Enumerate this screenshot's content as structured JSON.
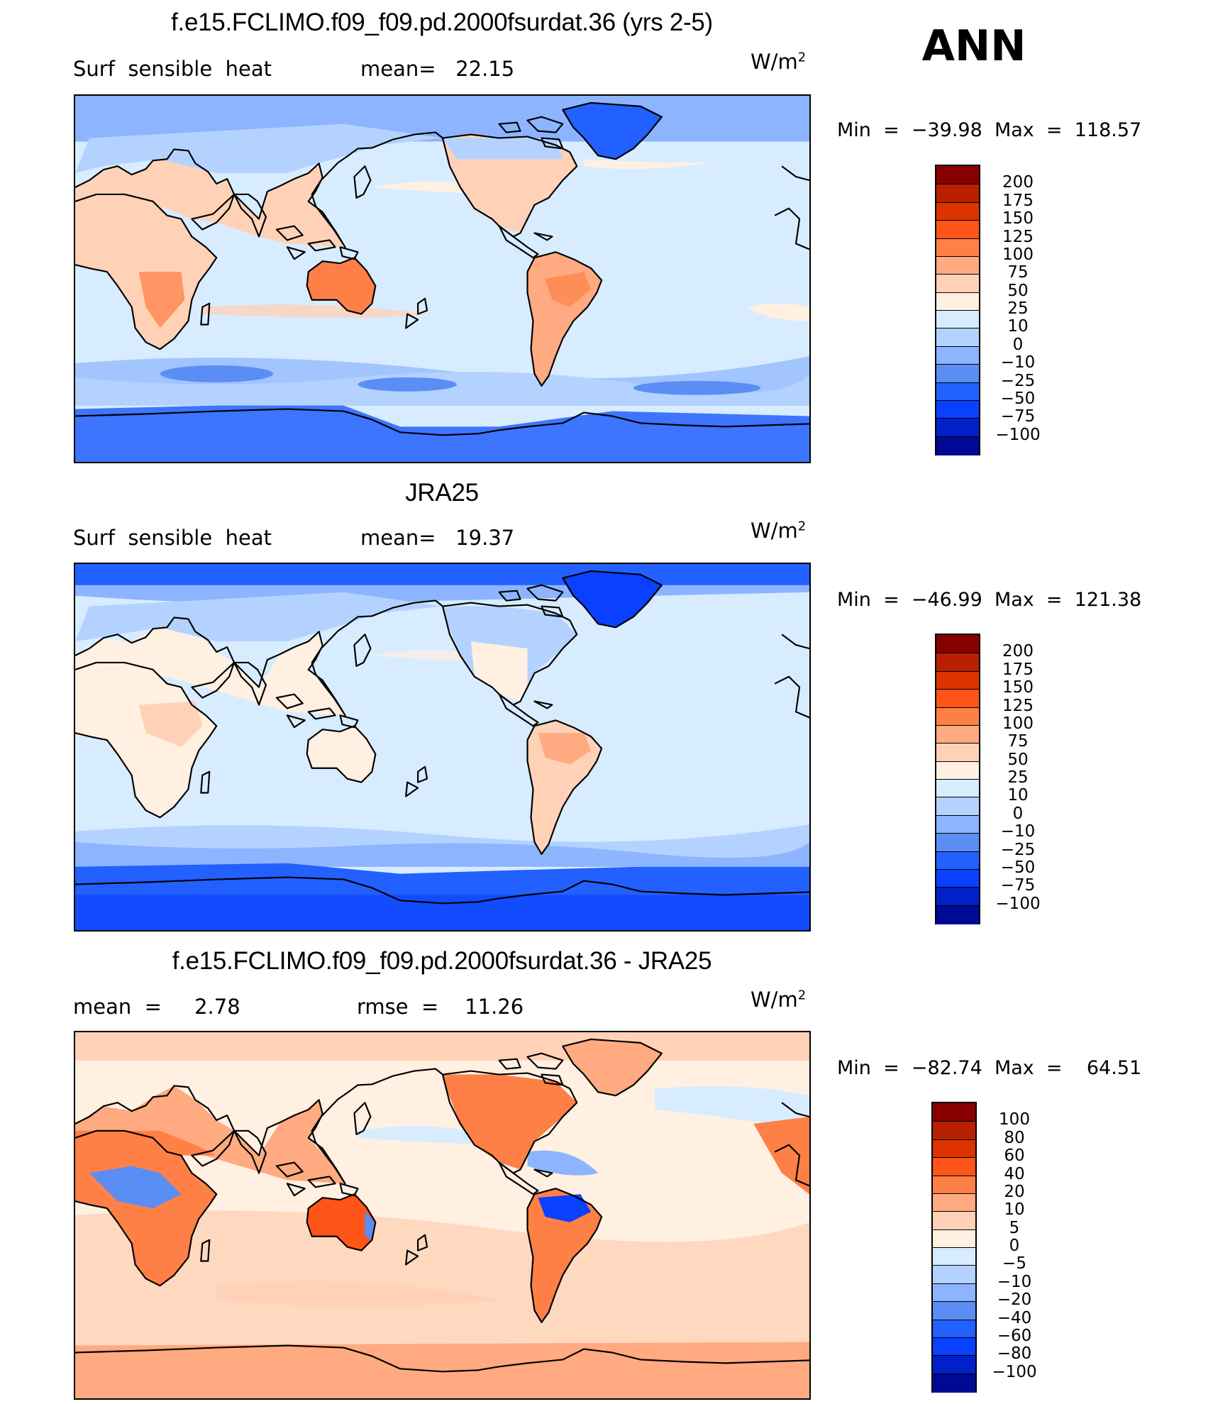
{
  "season": "ANN",
  "panels": [
    {
      "title": "f.e15.FCLIMO.f09_f09.pd.2000fsurdat.36 (yrs 2-5)",
      "left_text": "Surf  sensible  heat",
      "stat_text": "mean=   22.15",
      "units": "W/m",
      "units_sup": "2",
      "minmax": "Min  =  −39.98  Max  =  118.57",
      "colorbar_colors": [
        "#870000",
        "#b82000",
        "#dd3300",
        "#ff5518",
        "#ff8046",
        "#ffaa80",
        "#ffd2b8",
        "#fff0e2",
        "#d8ecff",
        "#b4d2ff",
        "#8cb4ff",
        "#5a8ef5",
        "#2260ff",
        "#0a40ff",
        "#0020c8",
        "#000896"
      ],
      "colorbar_labels": [
        "200",
        "175",
        "150",
        "125",
        "100",
        "75",
        "50",
        "25",
        "10",
        "0",
        "−10",
        "−25",
        "−50",
        "−75",
        "−100"
      ]
    },
    {
      "title": "JRA25",
      "left_text": "Surf  sensible  heat",
      "stat_text": "mean=   19.37",
      "units": "W/m",
      "units_sup": "2",
      "minmax": "Min  =  −46.99  Max  =  121.38",
      "colorbar_colors": [
        "#870000",
        "#b82000",
        "#dd3300",
        "#ff5518",
        "#ff8046",
        "#ffaa80",
        "#ffd2b8",
        "#fff0e2",
        "#d8ecff",
        "#b4d2ff",
        "#8cb4ff",
        "#5a8ef5",
        "#2260ff",
        "#0a40ff",
        "#0020c8",
        "#000896"
      ],
      "colorbar_labels": [
        "200",
        "175",
        "150",
        "125",
        "100",
        "75",
        "50",
        "25",
        "10",
        "0",
        "−10",
        "−25",
        "−50",
        "−75",
        "−100"
      ]
    },
    {
      "title": "f.e15.FCLIMO.f09_f09.pd.2000fsurdat.36 - JRA25",
      "left_text": "mean  =     2.78",
      "stat_text": "rmse  =    11.26",
      "units": "W/m",
      "units_sup": "2",
      "minmax": "Min  =  −82.74  Max  =    64.51",
      "colorbar_colors": [
        "#870000",
        "#b82000",
        "#dd3300",
        "#ff5518",
        "#ff8046",
        "#ffaa80",
        "#ffd2b8",
        "#fff0e2",
        "#d8ecff",
        "#b4d2ff",
        "#8cb4ff",
        "#5a8ef5",
        "#2260ff",
        "#0a40ff",
        "#0020c8",
        "#000896"
      ],
      "colorbar_labels": [
        "100",
        "80",
        "60",
        "40",
        "20",
        "10",
        "5",
        "0",
        "−5",
        "−10",
        "−20",
        "−40",
        "−60",
        "−80",
        "−100"
      ]
    }
  ]
}
